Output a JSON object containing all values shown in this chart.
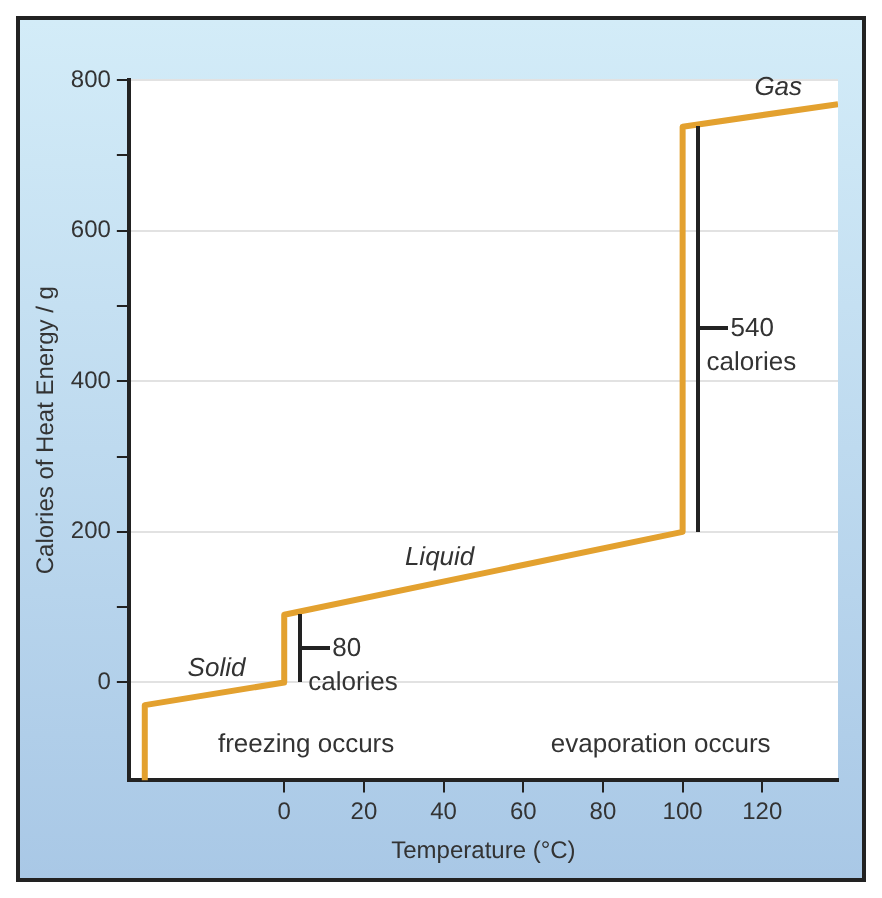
{
  "chart_data": {
    "type": "line",
    "xlabel": "Temperature (°C)",
    "ylabel": "Calories of Heat Energy / g",
    "series": [
      {
        "color": "#e3a12f",
        "x": [
          -35,
          -35,
          0,
          0,
          100,
          100,
          139
        ],
        "values": [
          -130,
          -30,
          0,
          90,
          200,
          738,
          768
        ]
      }
    ],
    "xlim": [
      -39,
      139
    ],
    "xticks": [
      0,
      20,
      40,
      60,
      80,
      100,
      120
    ],
    "ylim": [
      -130,
      800
    ],
    "yticks": [
      0,
      {
        "value": 100,
        "label": null
      },
      200,
      {
        "value": 300,
        "label": null
      },
      400,
      {
        "value": 500,
        "label": null
      },
      600,
      {
        "value": 700,
        "label": null
      },
      800
    ],
    "grid": "y",
    "legend": false,
    "marker": "none",
    "line_style": "solid",
    "annotations": [
      {
        "text": "Solid",
        "x": -17,
        "y": -15
      },
      {
        "text": "Liquid",
        "x": 39,
        "y": 133
      },
      {
        "text": "Gas",
        "x": 124,
        "y": 756
      },
      {
        "text": "80 calories",
        "x": 0,
        "y": 45
      },
      {
        "text": "540 calories",
        "x": 100,
        "y": 470
      },
      "freezing occurs",
      "evaporation occurs"
    ]
  }
}
